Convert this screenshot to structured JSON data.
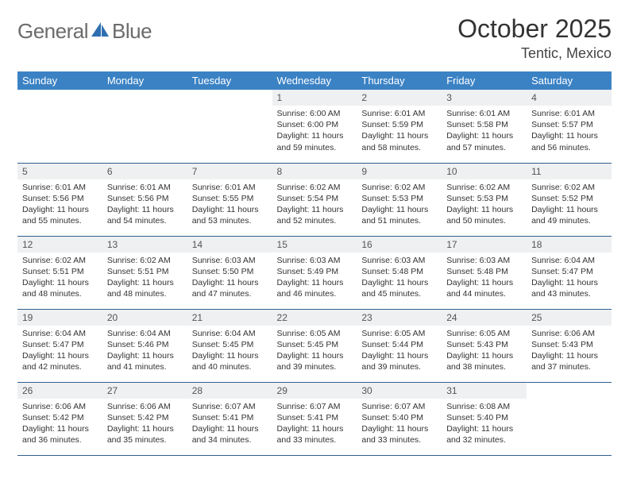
{
  "brand": {
    "general": "General",
    "blue": "Blue"
  },
  "title": "October 2025",
  "location": "Tentic, Mexico",
  "colors": {
    "header_bg": "#3b82c4",
    "header_text": "#ffffff",
    "daynum_bg": "#eef0f1",
    "row_border": "#2f5f8f",
    "logo_gray": "#6b6b6b",
    "logo_blue": "#2f6fb0"
  },
  "weekdays": [
    "Sunday",
    "Monday",
    "Tuesday",
    "Wednesday",
    "Thursday",
    "Friday",
    "Saturday"
  ],
  "weeks": [
    [
      {
        "empty": true
      },
      {
        "empty": true
      },
      {
        "empty": true
      },
      {
        "num": "1",
        "sunrise": "Sunrise: 6:00 AM",
        "sunset": "Sunset: 6:00 PM",
        "day1": "Daylight: 11 hours",
        "day2": "and 59 minutes."
      },
      {
        "num": "2",
        "sunrise": "Sunrise: 6:01 AM",
        "sunset": "Sunset: 5:59 PM",
        "day1": "Daylight: 11 hours",
        "day2": "and 58 minutes."
      },
      {
        "num": "3",
        "sunrise": "Sunrise: 6:01 AM",
        "sunset": "Sunset: 5:58 PM",
        "day1": "Daylight: 11 hours",
        "day2": "and 57 minutes."
      },
      {
        "num": "4",
        "sunrise": "Sunrise: 6:01 AM",
        "sunset": "Sunset: 5:57 PM",
        "day1": "Daylight: 11 hours",
        "day2": "and 56 minutes."
      }
    ],
    [
      {
        "num": "5",
        "sunrise": "Sunrise: 6:01 AM",
        "sunset": "Sunset: 5:56 PM",
        "day1": "Daylight: 11 hours",
        "day2": "and 55 minutes."
      },
      {
        "num": "6",
        "sunrise": "Sunrise: 6:01 AM",
        "sunset": "Sunset: 5:56 PM",
        "day1": "Daylight: 11 hours",
        "day2": "and 54 minutes."
      },
      {
        "num": "7",
        "sunrise": "Sunrise: 6:01 AM",
        "sunset": "Sunset: 5:55 PM",
        "day1": "Daylight: 11 hours",
        "day2": "and 53 minutes."
      },
      {
        "num": "8",
        "sunrise": "Sunrise: 6:02 AM",
        "sunset": "Sunset: 5:54 PM",
        "day1": "Daylight: 11 hours",
        "day2": "and 52 minutes."
      },
      {
        "num": "9",
        "sunrise": "Sunrise: 6:02 AM",
        "sunset": "Sunset: 5:53 PM",
        "day1": "Daylight: 11 hours",
        "day2": "and 51 minutes."
      },
      {
        "num": "10",
        "sunrise": "Sunrise: 6:02 AM",
        "sunset": "Sunset: 5:53 PM",
        "day1": "Daylight: 11 hours",
        "day2": "and 50 minutes."
      },
      {
        "num": "11",
        "sunrise": "Sunrise: 6:02 AM",
        "sunset": "Sunset: 5:52 PM",
        "day1": "Daylight: 11 hours",
        "day2": "and 49 minutes."
      }
    ],
    [
      {
        "num": "12",
        "sunrise": "Sunrise: 6:02 AM",
        "sunset": "Sunset: 5:51 PM",
        "day1": "Daylight: 11 hours",
        "day2": "and 48 minutes."
      },
      {
        "num": "13",
        "sunrise": "Sunrise: 6:02 AM",
        "sunset": "Sunset: 5:51 PM",
        "day1": "Daylight: 11 hours",
        "day2": "and 48 minutes."
      },
      {
        "num": "14",
        "sunrise": "Sunrise: 6:03 AM",
        "sunset": "Sunset: 5:50 PM",
        "day1": "Daylight: 11 hours",
        "day2": "and 47 minutes."
      },
      {
        "num": "15",
        "sunrise": "Sunrise: 6:03 AM",
        "sunset": "Sunset: 5:49 PM",
        "day1": "Daylight: 11 hours",
        "day2": "and 46 minutes."
      },
      {
        "num": "16",
        "sunrise": "Sunrise: 6:03 AM",
        "sunset": "Sunset: 5:48 PM",
        "day1": "Daylight: 11 hours",
        "day2": "and 45 minutes."
      },
      {
        "num": "17",
        "sunrise": "Sunrise: 6:03 AM",
        "sunset": "Sunset: 5:48 PM",
        "day1": "Daylight: 11 hours",
        "day2": "and 44 minutes."
      },
      {
        "num": "18",
        "sunrise": "Sunrise: 6:04 AM",
        "sunset": "Sunset: 5:47 PM",
        "day1": "Daylight: 11 hours",
        "day2": "and 43 minutes."
      }
    ],
    [
      {
        "num": "19",
        "sunrise": "Sunrise: 6:04 AM",
        "sunset": "Sunset: 5:47 PM",
        "day1": "Daylight: 11 hours",
        "day2": "and 42 minutes."
      },
      {
        "num": "20",
        "sunrise": "Sunrise: 6:04 AM",
        "sunset": "Sunset: 5:46 PM",
        "day1": "Daylight: 11 hours",
        "day2": "and 41 minutes."
      },
      {
        "num": "21",
        "sunrise": "Sunrise: 6:04 AM",
        "sunset": "Sunset: 5:45 PM",
        "day1": "Daylight: 11 hours",
        "day2": "and 40 minutes."
      },
      {
        "num": "22",
        "sunrise": "Sunrise: 6:05 AM",
        "sunset": "Sunset: 5:45 PM",
        "day1": "Daylight: 11 hours",
        "day2": "and 39 minutes."
      },
      {
        "num": "23",
        "sunrise": "Sunrise: 6:05 AM",
        "sunset": "Sunset: 5:44 PM",
        "day1": "Daylight: 11 hours",
        "day2": "and 39 minutes."
      },
      {
        "num": "24",
        "sunrise": "Sunrise: 6:05 AM",
        "sunset": "Sunset: 5:43 PM",
        "day1": "Daylight: 11 hours",
        "day2": "and 38 minutes."
      },
      {
        "num": "25",
        "sunrise": "Sunrise: 6:06 AM",
        "sunset": "Sunset: 5:43 PM",
        "day1": "Daylight: 11 hours",
        "day2": "and 37 minutes."
      }
    ],
    [
      {
        "num": "26",
        "sunrise": "Sunrise: 6:06 AM",
        "sunset": "Sunset: 5:42 PM",
        "day1": "Daylight: 11 hours",
        "day2": "and 36 minutes."
      },
      {
        "num": "27",
        "sunrise": "Sunrise: 6:06 AM",
        "sunset": "Sunset: 5:42 PM",
        "day1": "Daylight: 11 hours",
        "day2": "and 35 minutes."
      },
      {
        "num": "28",
        "sunrise": "Sunrise: 6:07 AM",
        "sunset": "Sunset: 5:41 PM",
        "day1": "Daylight: 11 hours",
        "day2": "and 34 minutes."
      },
      {
        "num": "29",
        "sunrise": "Sunrise: 6:07 AM",
        "sunset": "Sunset: 5:41 PM",
        "day1": "Daylight: 11 hours",
        "day2": "and 33 minutes."
      },
      {
        "num": "30",
        "sunrise": "Sunrise: 6:07 AM",
        "sunset": "Sunset: 5:40 PM",
        "day1": "Daylight: 11 hours",
        "day2": "and 33 minutes."
      },
      {
        "num": "31",
        "sunrise": "Sunrise: 6:08 AM",
        "sunset": "Sunset: 5:40 PM",
        "day1": "Daylight: 11 hours",
        "day2": "and 32 minutes."
      },
      {
        "empty": true
      }
    ]
  ]
}
